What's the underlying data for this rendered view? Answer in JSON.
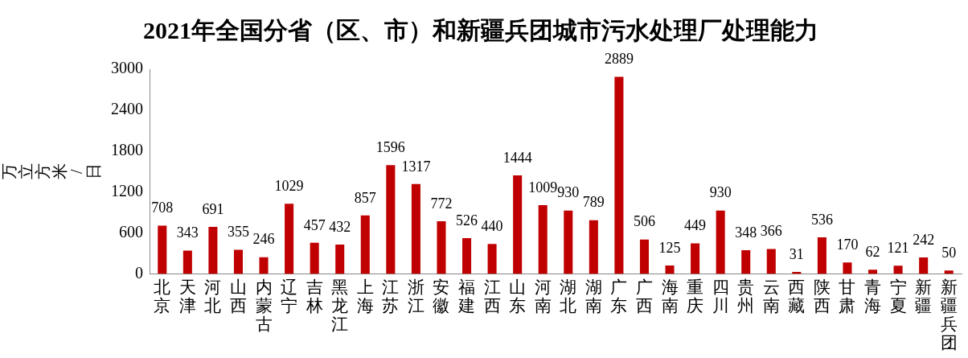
{
  "chart_data": {
    "type": "bar",
    "title": "2021年全国分省（区、市）和新疆兵团城市污水处理厂处理能力",
    "ylabel": "万立方米/日",
    "categories": [
      "北京",
      "天津",
      "河北",
      "山西",
      "内蒙古",
      "辽宁",
      "吉林",
      "黑龙江",
      "上海",
      "江苏",
      "浙江",
      "安徽",
      "福建",
      "江西",
      "山东",
      "河南",
      "湖北",
      "湖南",
      "广东",
      "广西",
      "海南",
      "重庆",
      "四川",
      "贵州",
      "云南",
      "西藏",
      "陕西",
      "甘肃",
      "青海",
      "宁夏",
      "新疆",
      "新疆兵团"
    ],
    "values": [
      708,
      343,
      691,
      355,
      246,
      1029,
      457,
      432,
      857,
      1596,
      1317,
      772,
      526,
      440,
      1444,
      1009,
      930,
      789,
      2889,
      506,
      125,
      449,
      930,
      348,
      366,
      31,
      536,
      170,
      62,
      121,
      242,
      50
    ],
    "color": "#c00000",
    "ylim": [
      0,
      3000
    ],
    "yticks": [
      0,
      600,
      1200,
      1800,
      2400,
      3000
    ],
    "grid": false,
    "legend": false,
    "data_labels": true
  }
}
